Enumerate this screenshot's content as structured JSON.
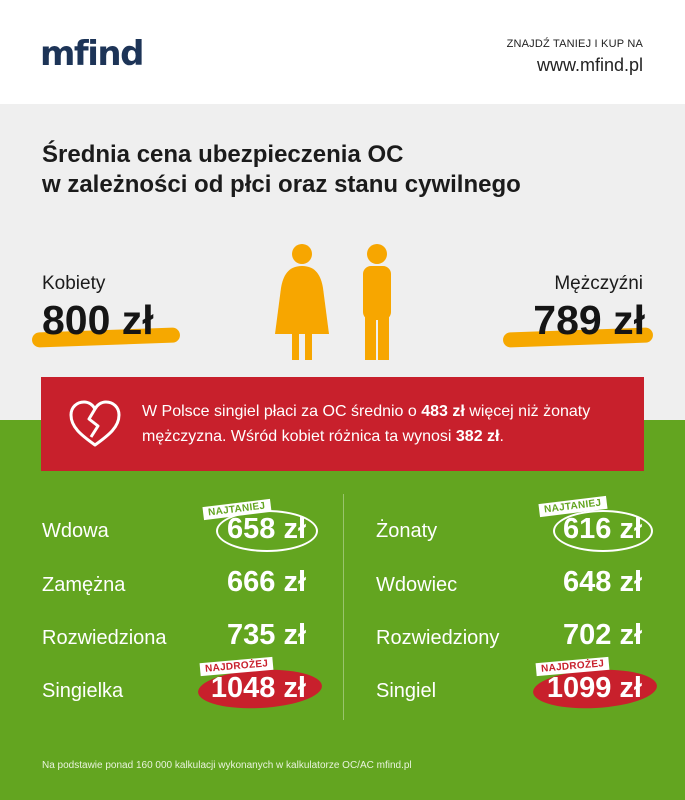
{
  "header": {
    "logo": "mfind",
    "tagline": "ZNAJDŹ TANIEJ I KUP NA",
    "url": "www.mfind.pl"
  },
  "title": {
    "line1": "Średnia cena ubezpieczenia OC",
    "line2": "w zależności od płci oraz stanu cywilnego"
  },
  "women": {
    "label": "Kobiety",
    "price": "800 zł"
  },
  "men": {
    "label": "Mężczyźni",
    "price": "789 zł"
  },
  "banner": {
    "part1": "W Polsce singiel płaci za OC średnio o ",
    "bold1": "483 zł",
    "part2": " więcej niż żonaty mężczyzna. Wśród kobiet różnica ta wynosi ",
    "bold2": "382 zł",
    "part3": "."
  },
  "women_rows": [
    {
      "label": "Wdowa",
      "price": "658 zł"
    },
    {
      "label": "Zamężna",
      "price": "666 zł"
    },
    {
      "label": "Rozwiedziona",
      "price": "735 zł"
    },
    {
      "label": "Singielka",
      "price": "1048 zł"
    }
  ],
  "men_rows": [
    {
      "label": "Żonaty",
      "price": "616 zł"
    },
    {
      "label": "Wdowiec",
      "price": "648 zł"
    },
    {
      "label": "Rozwiedziony",
      "price": "702 zł"
    },
    {
      "label": "Singiel",
      "price": "1099 zł"
    }
  ],
  "tags": {
    "cheapest": "NAJTANIEJ",
    "most_expensive": "NAJDROŻEJ"
  },
  "footnote": "Na podstawie ponad 160 000 kalkulacji wykonanych w kalkulatorze OC/AC mfind.pl",
  "colors": {
    "navy": "#1d3457",
    "accent_orange": "#f6a800",
    "figure_orange": "#f7a600",
    "banner_red": "#c8202c",
    "green": "#63a520",
    "grey": "#efefef"
  },
  "icons": {
    "banner": "broken-heart-icon",
    "figures": "woman-man-figures-icon"
  }
}
